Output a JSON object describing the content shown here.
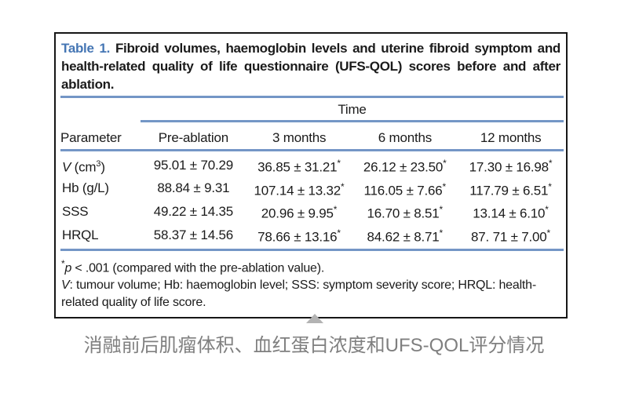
{
  "table_card": {
    "title": {
      "label": "Table 1.",
      "text": "Fibroid volumes, haemoglobin levels and uterine fibroid symptom and health-related quality of life questionnaire (UFS-QOL) scores before and after ablation."
    },
    "header": {
      "time_group": "Time",
      "parameter": "Parameter",
      "columns": [
        "Pre-ablation",
        "3 months",
        "6 months",
        "12 months"
      ]
    },
    "rows": [
      {
        "param": {
          "italic": "V",
          "text": " (cm",
          "sup": "3",
          "after": ")"
        },
        "values": [
          {
            "text": "95.01 ± 70.29",
            "star": ""
          },
          {
            "text": "36.85 ± 31.21",
            "star": "*"
          },
          {
            "text": "26.12 ± 23.50",
            "star": "*"
          },
          {
            "text": "17.30 ± 16.98",
            "star": "*"
          }
        ]
      },
      {
        "param": {
          "italic": "",
          "text": "Hb (g/L)",
          "sup": "",
          "after": ""
        },
        "values": [
          {
            "text": "88.84 ± 9.31",
            "star": ""
          },
          {
            "text": "107.14 ± 13.32",
            "star": "*"
          },
          {
            "text": "116.05 ± 7.66",
            "star": "*"
          },
          {
            "text": "117.79 ± 6.51",
            "star": "*"
          }
        ]
      },
      {
        "param": {
          "italic": "",
          "text": "SSS",
          "sup": "",
          "after": ""
        },
        "values": [
          {
            "text": "49.22 ± 14.35",
            "star": ""
          },
          {
            "text": "20.96 ± 9.95",
            "star": "*"
          },
          {
            "text": "16.70 ± 8.51",
            "star": "*"
          },
          {
            "text": "13.14 ± 6.10",
            "star": "*"
          }
        ]
      },
      {
        "param": {
          "italic": "",
          "text": "HRQL",
          "sup": "",
          "after": ""
        },
        "values": [
          {
            "text": "58.37 ± 14.56",
            "star": ""
          },
          {
            "text": "78.66 ± 13.16",
            "star": "*"
          },
          {
            "text": "84.62 ± 8.71",
            "star": "*"
          },
          {
            "text": "87. 71 ± 7.00",
            "star": "*"
          }
        ]
      }
    ],
    "footnotes": {
      "note1": {
        "sup": "*",
        "italic": "p",
        "text": " < .001 (compared with the pre-ablation value)."
      },
      "note2": {
        "italic": "V",
        "text": ": tumour volume; Hb: haemoglobin level; SSS: symptom severity score; HRQL: health-related quality of life score."
      }
    }
  },
  "caption": {
    "text": "消融前后肌瘤体积、血红蛋白浓度和UFS-QOL评分情况"
  },
  "colors": {
    "accent_blue_line": "#7496c6",
    "accent_blue_label": "#4576b4",
    "text_black": "#1b1b1b",
    "card_border": "#161616",
    "caption_gray": "#7f7f7f",
    "triangle_gray": "#b3b3b3"
  }
}
